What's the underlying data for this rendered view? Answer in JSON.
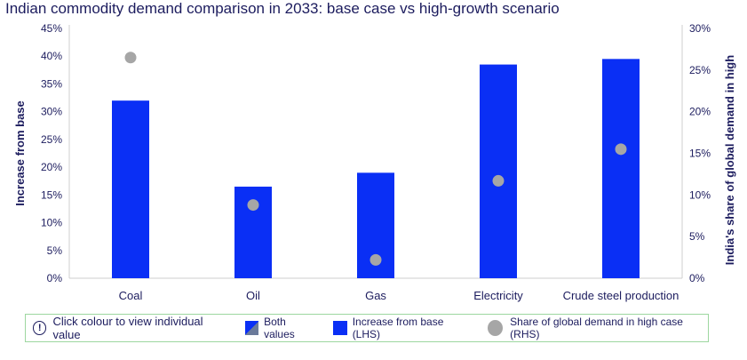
{
  "chart_data": {
    "type": "bar",
    "title": "Indian commodity demand comparison in 2033: base case vs high-growth scenario",
    "ylabel_left": "Increase from base",
    "ylabel_right": "India's share of global demand in high",
    "categories": [
      "Coal",
      "Oil",
      "Gas",
      "Electricity",
      "Crude steel production"
    ],
    "left_ticks": [
      "0%",
      "5%",
      "10%",
      "15%",
      "20%",
      "25%",
      "30%",
      "35%",
      "40%",
      "45%"
    ],
    "right_ticks": [
      "0%",
      "5%",
      "10%",
      "15%",
      "20%",
      "25%",
      "30%"
    ],
    "ylim_left": [
      0,
      45
    ],
    "ylim_right": [
      0,
      30
    ],
    "series": [
      {
        "name": "Increase from base (LHS)",
        "kind": "bar",
        "axis": "left",
        "color": "#0a2ff5",
        "values": [
          32,
          16.5,
          19,
          38.5,
          39.5
        ]
      },
      {
        "name": "Share of global demand in high case (RHS)",
        "kind": "dot",
        "axis": "right",
        "color": "#a6a6a6",
        "values": [
          26.5,
          8.8,
          2.2,
          11.7,
          15.5
        ]
      }
    ]
  },
  "legend": {
    "info_text": "Click colour to view individual value",
    "both_label": "Both values",
    "bar_label": "Increase from base (LHS)",
    "dot_label": "Share of global demand in high case (RHS)"
  }
}
